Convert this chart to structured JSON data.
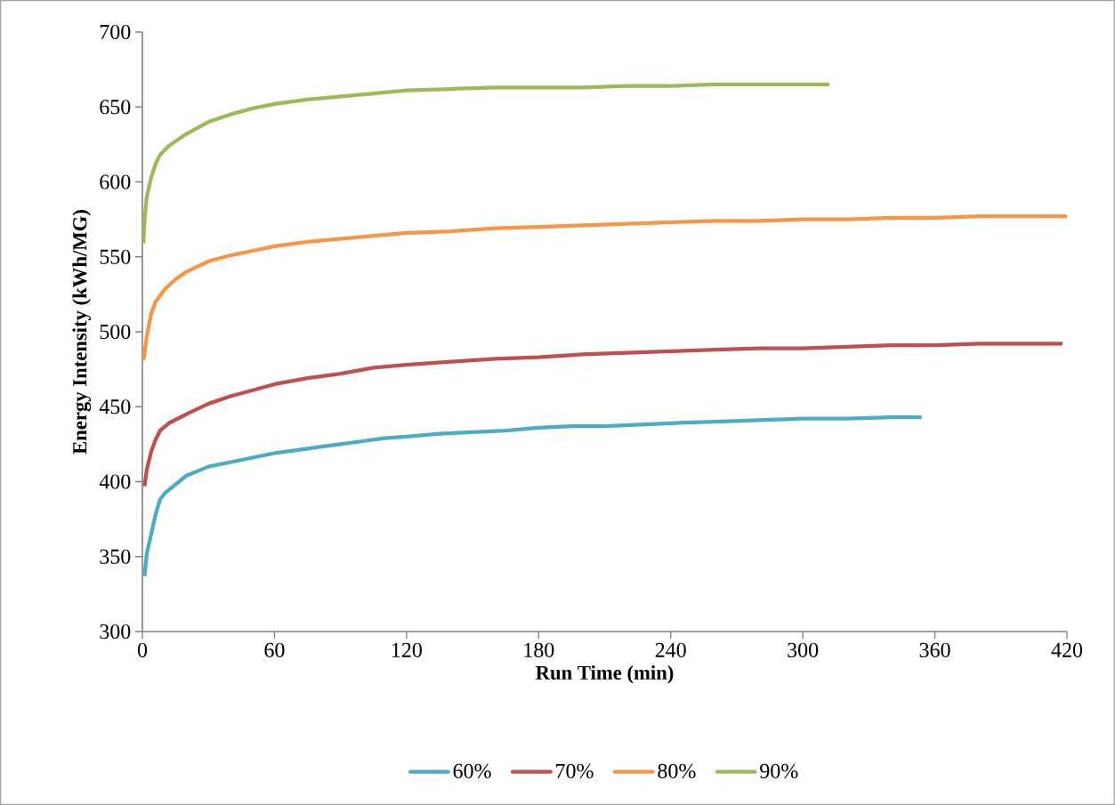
{
  "chart_data": {
    "type": "line",
    "xlabel": "Run Time (min)",
    "ylabel": "Energy Intensity (kWh/MG)",
    "xlim": [
      0,
      420
    ],
    "xticks": [
      0,
      60,
      120,
      180,
      240,
      300,
      360,
      420
    ],
    "ylim": [
      300,
      700
    ],
    "yticks": [
      300,
      350,
      400,
      450,
      500,
      550,
      600,
      650,
      700
    ],
    "grid": false,
    "legend": "bottom",
    "marker": "none",
    "line_style": "solid",
    "series": [
      {
        "name": "60%",
        "color": "#4bacc6",
        "x": [
          1,
          2,
          4,
          6,
          8,
          10,
          15,
          20,
          30,
          40,
          50,
          60,
          70,
          80,
          90,
          100,
          110,
          120,
          135,
          150,
          165,
          180,
          195,
          210,
          225,
          240,
          260,
          280,
          300,
          320,
          340,
          354
        ],
        "values": [
          337,
          352,
          365,
          378,
          388,
          392,
          398,
          404,
          410,
          413,
          416,
          419,
          421,
          423,
          425,
          427,
          429,
          430,
          432,
          433,
          434,
          436,
          437,
          437,
          438,
          439,
          440,
          441,
          442,
          442,
          443,
          443
        ]
      },
      {
        "name": "70%",
        "color": "#c0504d",
        "x": [
          1,
          2,
          4,
          6,
          8,
          12,
          20,
          30,
          40,
          50,
          60,
          75,
          90,
          105,
          120,
          140,
          160,
          180,
          200,
          220,
          240,
          260,
          280,
          300,
          320,
          340,
          360,
          380,
          400,
          418
        ],
        "values": [
          397,
          408,
          420,
          428,
          434,
          439,
          445,
          452,
          457,
          461,
          465,
          469,
          472,
          476,
          478,
          480,
          482,
          483,
          485,
          486,
          487,
          488,
          489,
          489,
          490,
          491,
          491,
          492,
          492,
          492
        ]
      },
      {
        "name": "80%",
        "color": "#f79646",
        "x": [
          0.5,
          2,
          4,
          6,
          10,
          15,
          20,
          30,
          40,
          50,
          60,
          75,
          90,
          105,
          120,
          140,
          160,
          180,
          200,
          220,
          240,
          260,
          280,
          300,
          320,
          340,
          360,
          380,
          400,
          420
        ],
        "values": [
          481,
          497,
          512,
          520,
          528,
          535,
          540,
          547,
          551,
          554,
          557,
          560,
          562,
          564,
          566,
          567,
          569,
          570,
          571,
          572,
          573,
          574,
          574,
          575,
          575,
          576,
          576,
          577,
          577,
          577
        ]
      },
      {
        "name": "90%",
        "color": "#9bbb59",
        "x": [
          0.5,
          1,
          2,
          4,
          6,
          8,
          12,
          20,
          30,
          40,
          50,
          60,
          75,
          90,
          105,
          120,
          140,
          160,
          180,
          200,
          220,
          240,
          260,
          280,
          300,
          312
        ],
        "values": [
          559,
          575,
          590,
          603,
          612,
          618,
          624,
          632,
          640,
          645,
          649,
          652,
          655,
          657,
          659,
          661,
          662,
          663,
          663,
          663,
          664,
          664,
          665,
          665,
          665,
          665
        ]
      }
    ]
  }
}
